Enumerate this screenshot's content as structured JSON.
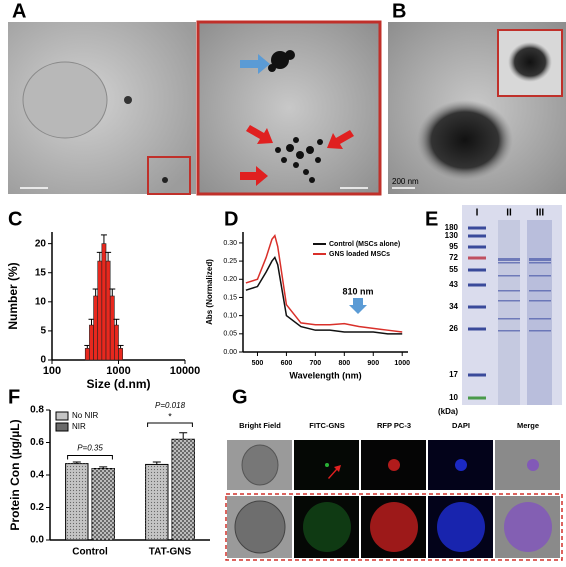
{
  "panels": [
    "A",
    "B",
    "C",
    "D",
    "E",
    "F",
    "G"
  ],
  "panel_b": {
    "scale_bar": "200 nm"
  },
  "chart_data": [
    {
      "type": "histogram",
      "xlabel": "Size (d.nm)",
      "ylabel": "Number (%)",
      "bins": [
        316,
        365,
        422,
        487,
        562,
        649,
        750,
        866,
        1000,
        1155
      ],
      "values": [
        2,
        6,
        11,
        17,
        20,
        17,
        11,
        6,
        2
      ],
      "errors": [
        0.5,
        1,
        1.2,
        1.5,
        1.5,
        1.5,
        1.2,
        1,
        0.5
      ],
      "color": "#e8281e",
      "log_x": true,
      "xlim": [
        100,
        10000
      ],
      "xticks": [
        100,
        1000,
        10000
      ],
      "ylim": [
        0,
        22
      ],
      "yticks": [
        0,
        5,
        10,
        15,
        20
      ]
    },
    {
      "type": "line",
      "xlabel": "Wavelength (nm)",
      "ylabel": "Abs (Normalized)",
      "x": [
        460,
        500,
        530,
        550,
        560,
        570,
        600,
        650,
        700,
        750,
        800,
        850,
        900,
        950,
        1000
      ],
      "series": [
        {
          "name": "Control (MSCs alone)",
          "color": "#111111",
          "values": [
            0.17,
            0.18,
            0.22,
            0.25,
            0.26,
            0.24,
            0.1,
            0.07,
            0.06,
            0.06,
            0.055,
            0.055,
            0.055,
            0.05,
            0.05
          ]
        },
        {
          "name": "GNS loaded MSCs",
          "color": "#d9302a",
          "values": [
            0.19,
            0.2,
            0.26,
            0.31,
            0.32,
            0.29,
            0.13,
            0.08,
            0.075,
            0.075,
            0.078,
            0.07,
            0.065,
            0.06,
            0.055
          ]
        }
      ],
      "xlim": [
        450,
        1020
      ],
      "xticks": [
        500,
        600,
        700,
        800,
        900,
        1000
      ],
      "ylim": [
        0,
        0.33
      ],
      "yticks": [
        {
          "value": 0,
          "label": "0.00"
        },
        {
          "value": 0.05,
          "label": "0.05"
        },
        {
          "value": 0.1,
          "label": "0.10"
        },
        {
          "value": 0.15,
          "label": "0.15"
        },
        {
          "value": 0.2,
          "label": "0.20"
        },
        {
          "value": 0.25,
          "label": "0.25"
        },
        {
          "value": 0.3,
          "label": "0.30"
        }
      ],
      "annotation": "810 nm"
    },
    {
      "type": "bar",
      "ylabel": "Protein Con (µg/µL)",
      "categories": [
        "Control",
        "TAT-GNS"
      ],
      "series": [
        {
          "name": "No NIR",
          "color": "#c4c4c4",
          "values": [
            0.47,
            0.465
          ],
          "errors": [
            0.01,
            0.015
          ]
        },
        {
          "name": "NIR",
          "color": "#6a6a6a",
          "values": [
            0.44,
            0.62
          ],
          "errors": [
            0.01,
            0.04
          ]
        }
      ],
      "ylim": [
        0,
        0.8
      ],
      "yticks": [
        {
          "value": 0,
          "label": "0.0"
        },
        {
          "value": 0.2,
          "label": "0.2"
        },
        {
          "value": 0.4,
          "label": "0.4"
        },
        {
          "value": 0.6,
          "label": "0.6"
        },
        {
          "value": 0.8,
          "label": "0.8"
        }
      ],
      "annotations": [
        "P=0.35",
        "P=0.018",
        "*"
      ]
    }
  ],
  "gel": {
    "lanes": [
      "I",
      "II",
      "III"
    ],
    "markers": [
      180,
      130,
      95,
      72,
      55,
      43,
      34,
      26,
      17,
      10
    ],
    "unit": "(kDa)"
  },
  "microscopy": {
    "columns": [
      "Bright Field",
      "FITC-GNS",
      "RFP PC-3",
      "DAPI",
      "Merge"
    ]
  }
}
